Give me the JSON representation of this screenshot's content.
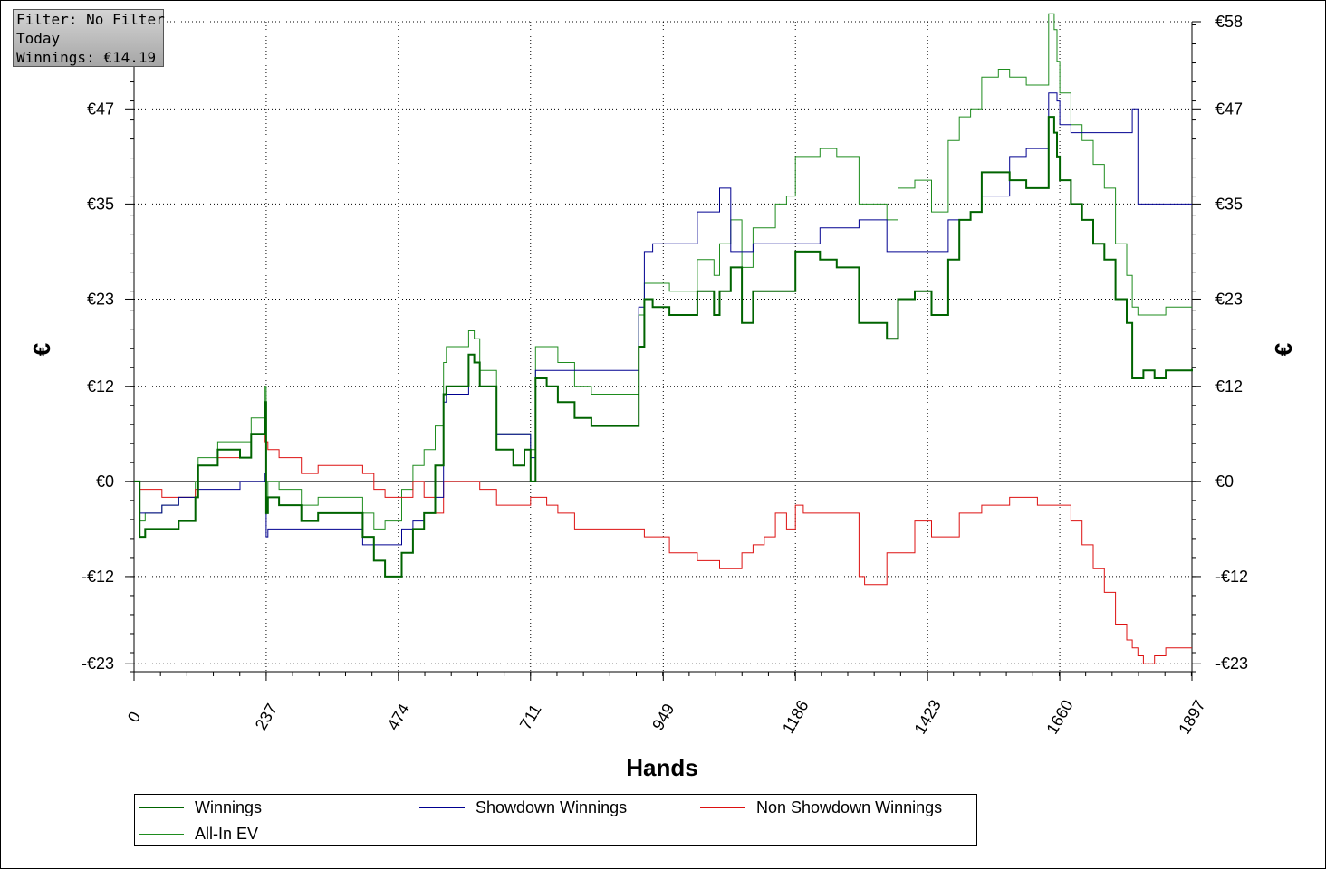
{
  "filter_box": {
    "line1": "Filter: No Filter",
    "line2": "Today",
    "line3": "Winnings: €14.19"
  },
  "colors": {
    "winnings": "#006400",
    "all_in_ev": "#1e8c1e",
    "showdown": "#000090",
    "non_showdown": "#dd1111",
    "grid": "#000000"
  },
  "legend": {
    "items": [
      {
        "label": "Winnings",
        "color_key": "winnings",
        "thick": true
      },
      {
        "label": "Showdown Winnings",
        "color_key": "showdown",
        "thick": false
      },
      {
        "label": "Non Showdown Winnings",
        "color_key": "non_showdown",
        "thick": false
      },
      {
        "label": "All-In EV",
        "color_key": "all_in_ev",
        "thick": false
      }
    ]
  },
  "chart_data": {
    "type": "line",
    "title": "",
    "xlabel": "Hands",
    "ylabel": "€",
    "ylabel_right": "€",
    "xlim": [
      0,
      1897
    ],
    "ylim": [
      -24,
      58
    ],
    "x_ticks": [
      0,
      237,
      474,
      711,
      949,
      1186,
      1423,
      1660,
      1897
    ],
    "y_ticks": [
      -23,
      -12,
      0,
      12,
      23,
      35,
      47,
      58
    ],
    "y_tick_labels": [
      "-€23",
      "-€12",
      "€0",
      "€12",
      "€23",
      "€35",
      "€47",
      "€58"
    ],
    "grid": true,
    "series": [
      {
        "name": "Winnings",
        "x": [
          0,
          10,
          20,
          50,
          80,
          110,
          115,
          150,
          190,
          210,
          235,
          237,
          240,
          260,
          300,
          330,
          390,
          410,
          430,
          450,
          480,
          500,
          520,
          540,
          555,
          560,
          600,
          610,
          620,
          650,
          680,
          700,
          711,
          720,
          740,
          760,
          790,
          820,
          850,
          890,
          905,
          915,
          930,
          960,
          1000,
          1010,
          1040,
          1050,
          1070,
          1090,
          1110,
          1130,
          1150,
          1170,
          1186,
          1200,
          1230,
          1260,
          1300,
          1310,
          1350,
          1370,
          1400,
          1430,
          1460,
          1480,
          1500,
          1520,
          1550,
          1570,
          1600,
          1620,
          1640,
          1650,
          1655,
          1660,
          1680,
          1700,
          1720,
          1740,
          1760,
          1780,
          1790,
          1800,
          1810,
          1830,
          1850,
          1870,
          1897
        ],
        "y": [
          0,
          -7,
          -6,
          -6,
          -5,
          -2,
          2,
          4,
          3,
          6,
          10,
          -4,
          -2,
          -3,
          -5,
          -4,
          -4,
          -7,
          -10,
          -12,
          -9,
          -6,
          -4,
          2,
          11,
          12,
          16,
          15,
          12,
          4,
          2,
          4,
          0,
          13,
          12,
          10,
          8,
          7,
          7,
          7,
          17,
          23,
          22,
          21,
          21,
          24,
          21,
          24,
          27,
          20,
          24,
          24,
          24,
          24,
          29,
          29,
          28,
          27,
          20,
          20,
          18,
          23,
          24,
          21,
          28,
          33,
          34,
          39,
          39,
          38,
          37,
          37,
          46,
          44,
          41,
          38,
          35,
          33,
          30,
          28,
          23,
          20,
          13,
          13,
          14,
          13,
          14,
          14,
          14.19
        ]
      },
      {
        "name": "Showdown Winnings",
        "x": [
          0,
          10,
          20,
          50,
          80,
          110,
          115,
          150,
          190,
          210,
          235,
          237,
          240,
          260,
          300,
          330,
          390,
          410,
          430,
          450,
          480,
          500,
          520,
          540,
          555,
          560,
          600,
          610,
          620,
          650,
          680,
          700,
          711,
          720,
          740,
          760,
          790,
          820,
          850,
          890,
          905,
          915,
          930,
          960,
          1000,
          1010,
          1040,
          1050,
          1070,
          1090,
          1110,
          1130,
          1150,
          1170,
          1186,
          1200,
          1230,
          1260,
          1300,
          1310,
          1350,
          1370,
          1400,
          1430,
          1460,
          1480,
          1500,
          1520,
          1550,
          1570,
          1600,
          1620,
          1640,
          1650,
          1655,
          1660,
          1680,
          1700,
          1720,
          1740,
          1760,
          1780,
          1790,
          1800,
          1810,
          1830,
          1850,
          1870,
          1897
        ],
        "y": [
          0,
          -4,
          -4,
          -3,
          -2,
          -2,
          -1,
          -1,
          0,
          0,
          1,
          -7,
          -6,
          -6,
          -6,
          -6,
          -6,
          -8,
          -8,
          -8,
          -6,
          -5,
          -4,
          -2,
          10,
          11,
          16,
          15,
          12,
          6,
          6,
          6,
          3,
          14,
          14,
          14,
          14,
          14,
          14,
          14,
          22,
          29,
          30,
          30,
          30,
          34,
          34,
          37,
          29,
          29,
          30,
          30,
          30,
          30,
          30,
          30,
          32,
          32,
          33,
          33,
          29,
          29,
          29,
          29,
          33,
          33,
          34,
          36,
          36,
          41,
          42,
          42,
          49,
          49,
          48,
          45,
          44,
          44,
          44,
          44,
          44,
          44,
          47,
          35,
          35,
          35,
          35,
          35,
          35
        ]
      },
      {
        "name": "Non Showdown Winnings",
        "x": [
          0,
          10,
          20,
          50,
          80,
          110,
          115,
          150,
          190,
          210,
          235,
          237,
          240,
          260,
          300,
          330,
          390,
          410,
          430,
          450,
          480,
          500,
          520,
          540,
          555,
          560,
          600,
          610,
          620,
          650,
          680,
          700,
          711,
          720,
          740,
          760,
          790,
          820,
          850,
          890,
          905,
          915,
          930,
          960,
          1000,
          1010,
          1040,
          1050,
          1070,
          1090,
          1110,
          1130,
          1150,
          1170,
          1186,
          1200,
          1230,
          1260,
          1300,
          1310,
          1350,
          1370,
          1400,
          1430,
          1460,
          1480,
          1500,
          1520,
          1550,
          1570,
          1600,
          1620,
          1640,
          1650,
          1655,
          1660,
          1680,
          1700,
          1720,
          1740,
          1760,
          1780,
          1790,
          1800,
          1810,
          1830,
          1850,
          1870,
          1897
        ],
        "y": [
          0,
          -1,
          -1,
          -2,
          -2,
          -1,
          2,
          3,
          3,
          6,
          5,
          5,
          4,
          3,
          1,
          2,
          2,
          1,
          -1,
          -2,
          -2,
          0,
          -2,
          -4,
          0,
          0,
          0,
          0,
          -1,
          -3,
          -3,
          -3,
          -2,
          -2,
          -3,
          -4,
          -6,
          -6,
          -6,
          -6,
          -6,
          -7,
          -7,
          -9,
          -9,
          -10,
          -10,
          -11,
          -11,
          -9,
          -8,
          -7,
          -4,
          -6,
          -3,
          -4,
          -4,
          -4,
          -12,
          -13,
          -9,
          -9,
          -5,
          -7,
          -7,
          -4,
          -4,
          -3,
          -3,
          -2,
          -2,
          -3,
          -3,
          -3,
          -3,
          -3,
          -5,
          -8,
          -11,
          -14,
          -18,
          -20,
          -21,
          -22,
          -23,
          -22,
          -21,
          -21,
          -21
        ]
      },
      {
        "name": "All-In EV",
        "x": [
          0,
          10,
          20,
          50,
          80,
          110,
          115,
          150,
          190,
          210,
          235,
          237,
          240,
          260,
          300,
          330,
          390,
          410,
          430,
          450,
          480,
          500,
          520,
          540,
          555,
          560,
          600,
          610,
          620,
          650,
          680,
          700,
          711,
          720,
          740,
          760,
          790,
          820,
          850,
          890,
          905,
          915,
          930,
          960,
          1000,
          1010,
          1040,
          1050,
          1070,
          1090,
          1110,
          1130,
          1150,
          1170,
          1186,
          1200,
          1230,
          1260,
          1300,
          1310,
          1350,
          1370,
          1400,
          1430,
          1460,
          1480,
          1500,
          1520,
          1550,
          1570,
          1600,
          1620,
          1640,
          1650,
          1655,
          1660,
          1680,
          1700,
          1720,
          1740,
          1760,
          1780,
          1790,
          1800,
          1810,
          1830,
          1850,
          1870,
          1897
        ],
        "y": [
          0,
          -5,
          -4,
          -3,
          -2,
          0,
          3,
          5,
          5,
          8,
          12,
          -2,
          0,
          -1,
          -3,
          -2,
          -2,
          -4,
          -6,
          -5,
          -1,
          2,
          4,
          7,
          15,
          17,
          19,
          18,
          14,
          6,
          6,
          6,
          4,
          17,
          17,
          15,
          12,
          11,
          11,
          11,
          21,
          25,
          25,
          24,
          24,
          28,
          26,
          30,
          33,
          27,
          32,
          32,
          35,
          36,
          41,
          41,
          42,
          41,
          35,
          35,
          33,
          37,
          38,
          34,
          43,
          46,
          47,
          51,
          52,
          51,
          50,
          50,
          59,
          57,
          53,
          49,
          45,
          43,
          40,
          37,
          30,
          26,
          22,
          21,
          21,
          21,
          22,
          22,
          22
        ]
      }
    ]
  }
}
